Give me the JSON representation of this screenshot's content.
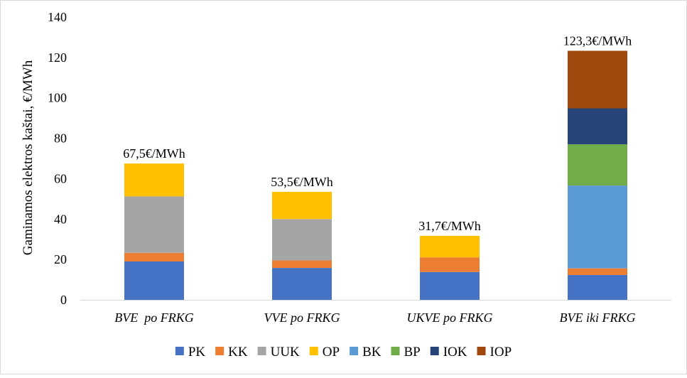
{
  "chart_data": {
    "type": "bar",
    "stacked": true,
    "title": "",
    "xlabel": "",
    "ylabel": "Gaminamos elektros kaštai, €/MWh",
    "ylim": [
      0,
      140
    ],
    "yticks": [
      0,
      20,
      40,
      60,
      80,
      100,
      120,
      140
    ],
    "grid": false,
    "legend_position": "bottom",
    "categories": [
      "BVE  po FRKG",
      "VVE po FRKG",
      "UKVE po FRKG",
      "BVE iki FRKG"
    ],
    "totals_labels": [
      "67,5€/MWh",
      "53,5€/MWh",
      "31,7€/MWh",
      "123,3€/MWh"
    ],
    "series": [
      {
        "name": "PK",
        "color": "#4472C4",
        "values": [
          19.0,
          15.8,
          13.8,
          12.3
        ]
      },
      {
        "name": "KK",
        "color": "#ED7D31",
        "values": [
          4.3,
          3.7,
          7.2,
          3.3
        ]
      },
      {
        "name": "UUK",
        "color": "#A5A5A5",
        "values": [
          27.9,
          20.5,
          0,
          0
        ]
      },
      {
        "name": "OP",
        "color": "#FFC000",
        "values": [
          16.3,
          13.5,
          10.7,
          0
        ]
      },
      {
        "name": "BK",
        "color": "#5B9BD5",
        "values": [
          0,
          0,
          0,
          41.0
        ]
      },
      {
        "name": "BP",
        "color": "#70AD47",
        "values": [
          0,
          0,
          0,
          20.4
        ]
      },
      {
        "name": "IOK",
        "color": "#264478",
        "values": [
          0,
          0,
          0,
          17.8
        ]
      },
      {
        "name": "IOP",
        "color": "#9E480E",
        "values": [
          0,
          0,
          0,
          28.5
        ]
      }
    ]
  }
}
